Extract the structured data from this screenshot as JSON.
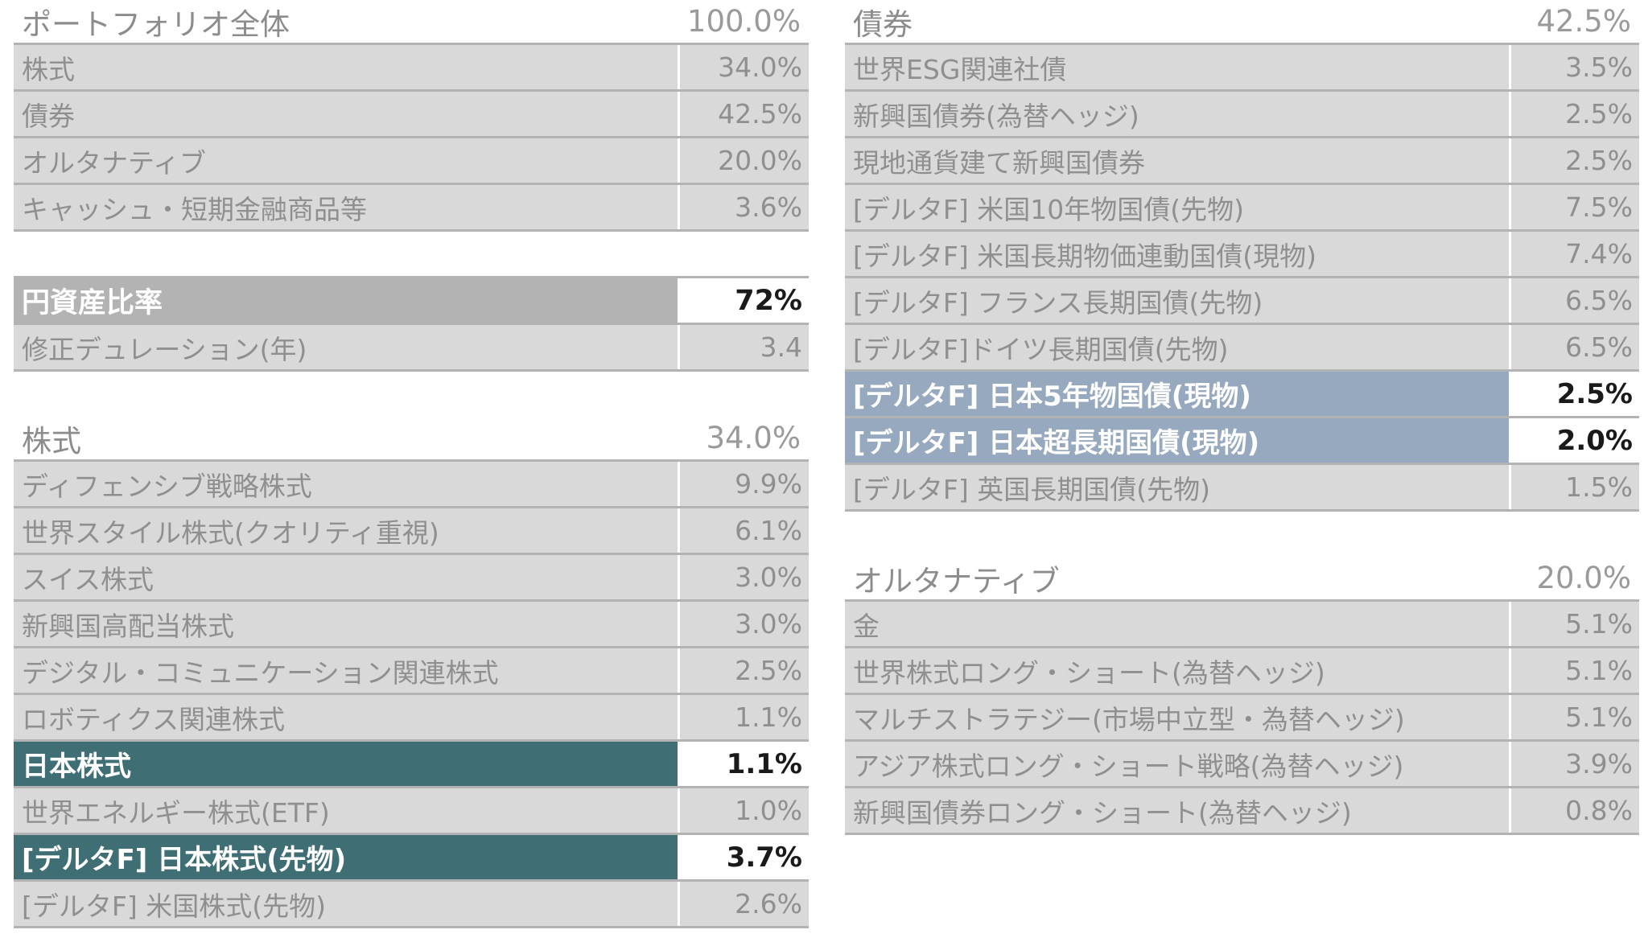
{
  "portfolio": {
    "title": "ポートフォリオ全体",
    "total": "100.0%",
    "rows": [
      {
        "label": "株式",
        "value": "34.0%"
      },
      {
        "label": "債券",
        "value": "42.5%"
      },
      {
        "label": "オルタナティブ",
        "value": "20.0%"
      },
      {
        "label": "キャッシュ・短期金融商品等",
        "value": "3.6%"
      }
    ]
  },
  "metrics": {
    "rows": [
      {
        "label": "円資産比率",
        "value": "72%"
      },
      {
        "label": "修正デュレーション(年)",
        "value": "3.4"
      }
    ]
  },
  "equity": {
    "title": "株式",
    "total": "34.0%",
    "rows": [
      {
        "label": "ディフェンシブ戦略株式",
        "value": "9.9%"
      },
      {
        "label": "世界スタイル株式(クオリティ重視)",
        "value": "6.1%"
      },
      {
        "label": "スイス株式",
        "value": "3.0%"
      },
      {
        "label": "新興国高配当株式",
        "value": "3.0%"
      },
      {
        "label": "デジタル・コミュニケーション関連株式",
        "value": "2.5%"
      },
      {
        "label": "ロボティクス関連株式",
        "value": "1.1%"
      },
      {
        "label": "日本株式",
        "value": "1.1%"
      },
      {
        "label": "世界エネルギー株式(ETF)",
        "value": "1.0%"
      },
      {
        "label": "[デルタF] 日本株式(先物)",
        "value": "3.7%"
      },
      {
        "label": "[デルタF] 米国株式(先物)",
        "value": "2.6%"
      }
    ]
  },
  "bonds": {
    "title": "債券",
    "total": "42.5%",
    "rows": [
      {
        "label": "世界ESG関連社債",
        "value": "3.5%"
      },
      {
        "label": "新興国債券(為替ヘッジ)",
        "value": "2.5%"
      },
      {
        "label": "現地通貨建て新興国債券",
        "value": "2.5%"
      },
      {
        "label": "[デルタF] 米国10年物国債(先物)",
        "value": "7.5%"
      },
      {
        "label": "[デルタF] 米国長期物価連動国債(現物)",
        "value": "7.4%"
      },
      {
        "label": "[デルタF] フランス長期国債(先物)",
        "value": "6.5%"
      },
      {
        "label": "[デルタF]ドイツ長期国債(先物)",
        "value": "6.5%"
      },
      {
        "label": "[デルタF] 日本5年物国債(現物)",
        "value": "2.5%"
      },
      {
        "label": "[デルタF] 日本超長期国債(現物)",
        "value": "2.0%"
      },
      {
        "label": "[デルタF] 英国長期国債(先物)",
        "value": "1.5%"
      }
    ]
  },
  "alternatives": {
    "title": "オルタナティブ",
    "total": "20.0%",
    "rows": [
      {
        "label": "金",
        "value": "5.1%"
      },
      {
        "label": "世界株式ロング・ショート(為替ヘッジ)",
        "value": "5.1%"
      },
      {
        "label": "マルチストラテジー(市場中立型・為替ヘッジ)",
        "value": "5.1%"
      },
      {
        "label": "アジア株式ロング・ショート戦略(為替ヘッジ)",
        "value": "3.9%"
      },
      {
        "label": "新興国債券ロング・ショート(為替ヘッジ)",
        "value": "0.8%"
      }
    ]
  },
  "colors": {
    "row_bg": "#d9d9d9",
    "highlight_teal": "#3f6f74",
    "highlight_blue": "#97a9bf",
    "highlight_gray": "#b3b3b3",
    "divider": "#b3b3b3"
  }
}
